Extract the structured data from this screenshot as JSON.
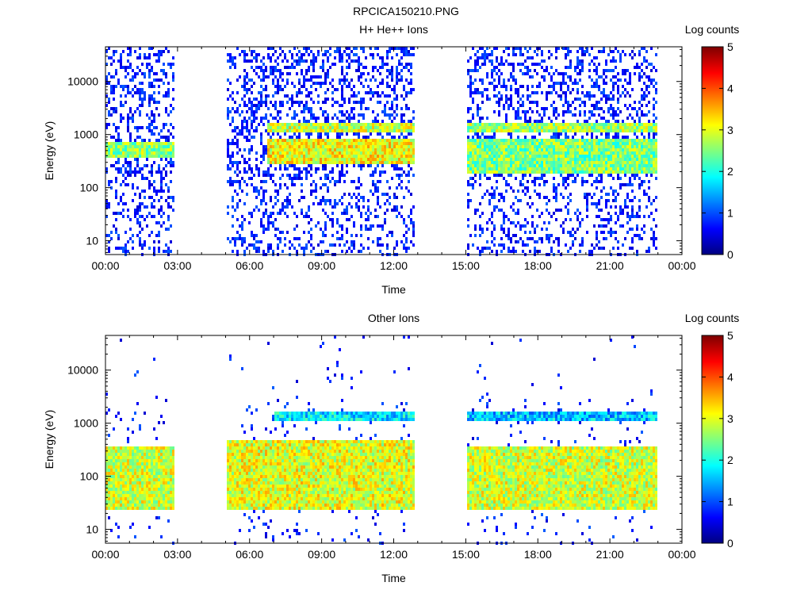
{
  "title": "RPCICA150210.PNG",
  "colors": {
    "colormap": [
      "#00007f",
      "#0000ff",
      "#007fff",
      "#00ffff",
      "#7fff7f",
      "#ffff00",
      "#ff7f00",
      "#ff0000",
      "#7f0000"
    ]
  },
  "chart_data": [
    {
      "type": "heatmap",
      "title": "H+ He++ Ions",
      "xlabel": "Time",
      "ylabel": "Energy (eV)",
      "x_ticks": [
        "00:00",
        "03:00",
        "06:00",
        "09:00",
        "12:00",
        "15:00",
        "18:00",
        "21:00",
        "00:00"
      ],
      "x_range_hours": [
        0,
        24
      ],
      "y_ticks": [
        "10",
        "100",
        "1000",
        "10000"
      ],
      "y_scale": "log",
      "y_range": [
        5.5,
        45000
      ],
      "colorbar": {
        "label": "Log counts",
        "ticks": [
          "0",
          "1",
          "2",
          "3",
          "4",
          "5"
        ],
        "range": [
          0,
          5
        ]
      },
      "data_gaps_hours": [
        [
          2.8,
          5.0
        ],
        [
          12.8,
          15.0
        ],
        [
          22.9,
          24.0
        ]
      ],
      "bands": [
        {
          "t": [
            0.0,
            2.8
          ],
          "energy": [
            400,
            800
          ],
          "level": 2.6
        },
        {
          "t": [
            6.7,
            12.8
          ],
          "energy": [
            1100,
            1700
          ],
          "level": 2.9
        },
        {
          "t": [
            6.7,
            12.8
          ],
          "energy": [
            300,
            900
          ],
          "level": 3.1
        },
        {
          "t": [
            15.0,
            22.9
          ],
          "energy": [
            1100,
            1700
          ],
          "level": 2.7
        },
        {
          "t": [
            15.0,
            22.9
          ],
          "energy": [
            200,
            900
          ],
          "level": 2.5
        }
      ]
    },
    {
      "type": "heatmap",
      "title": "Other Ions",
      "xlabel": "Time",
      "ylabel": "Energy (eV)",
      "x_ticks": [
        "00:00",
        "03:00",
        "06:00",
        "09:00",
        "12:00",
        "15:00",
        "18:00",
        "21:00",
        "00:00"
      ],
      "x_range_hours": [
        0,
        24
      ],
      "y_ticks": [
        "10",
        "100",
        "1000",
        "10000"
      ],
      "y_scale": "log",
      "y_range": [
        5.5,
        45000
      ],
      "colorbar": {
        "label": "Log counts",
        "ticks": [
          "0",
          "1",
          "2",
          "3",
          "4",
          "5"
        ],
        "range": [
          0,
          5
        ]
      },
      "data_gaps_hours": [
        [
          2.8,
          5.0
        ],
        [
          12.8,
          15.0
        ],
        [
          22.9,
          24.0
        ]
      ],
      "bands": [
        {
          "t": [
            0.0,
            2.8
          ],
          "energy": [
            25,
            400
          ],
          "level": 2.9
        },
        {
          "t": [
            5.0,
            12.8
          ],
          "energy": [
            25,
            500
          ],
          "level": 3.0
        },
        {
          "t": [
            7.0,
            12.8
          ],
          "energy": [
            1200,
            1700
          ],
          "level": 1.8
        },
        {
          "t": [
            15.0,
            22.9
          ],
          "energy": [
            25,
            400
          ],
          "level": 2.9
        },
        {
          "t": [
            15.0,
            22.9
          ],
          "energy": [
            1200,
            1700
          ],
          "level": 1.6
        }
      ]
    }
  ]
}
